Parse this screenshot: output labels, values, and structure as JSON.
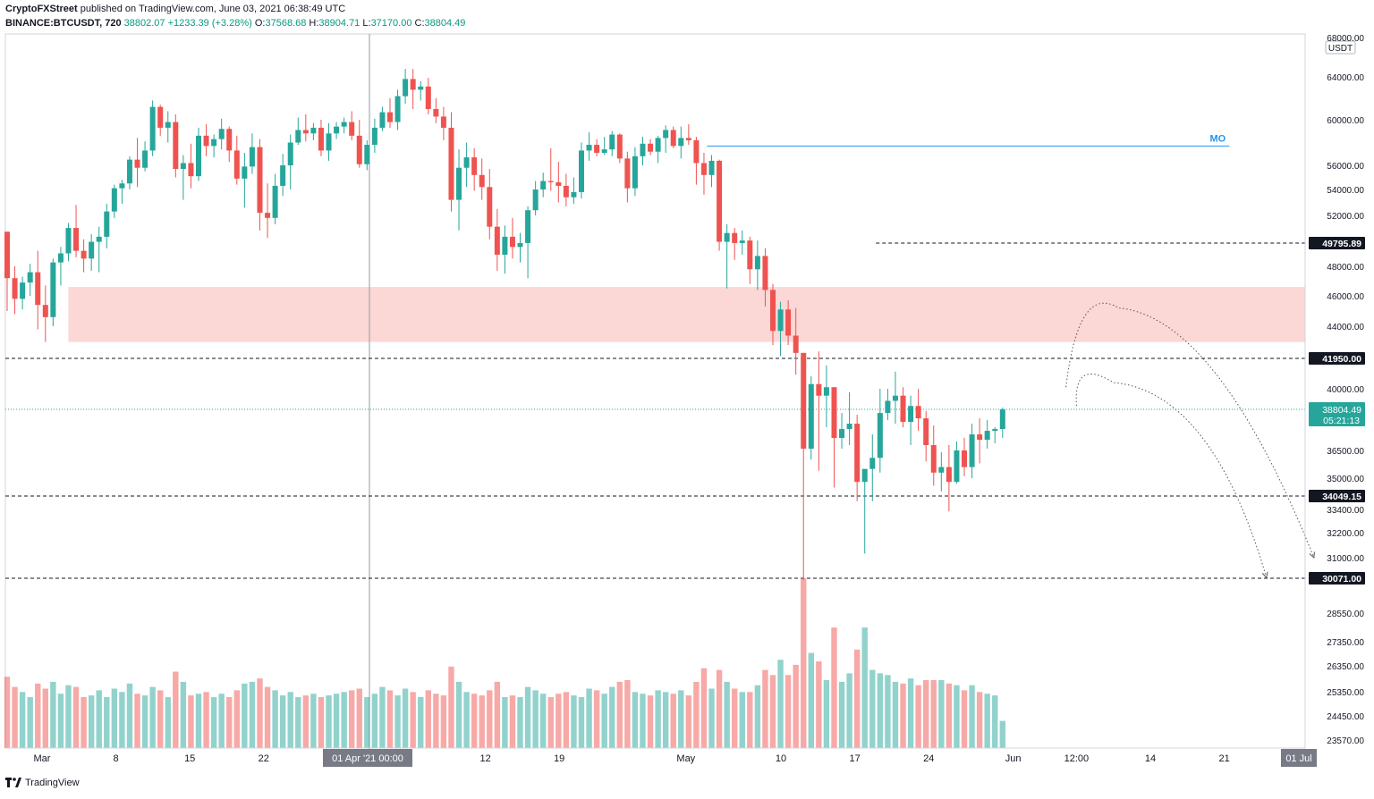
{
  "header": {
    "author": "CryptoFXStreet",
    "published_text": "published on TradingView.com, June 03, 2021 06:38:49 UTC",
    "symbol": "BINANCE:BTCUSDT, 720",
    "last": "38802.07",
    "change": "+1233.39 (+3.28%)",
    "o_label": "O:",
    "o_value": "37568.68",
    "h_label": "H:",
    "h_value": "38904.71",
    "l_label": "L:",
    "l_value": "37170.00",
    "c_label": "C:",
    "c_value": "38804.49"
  },
  "footer": {
    "brand": "TradingView"
  },
  "colors": {
    "up": "#26a69a",
    "down": "#ef5350",
    "zone": "#fbd7d5",
    "mo_line": "#2196f3"
  },
  "chart_data": {
    "type": "candlestick",
    "currency_label": "USDT",
    "price_ticks": [
      {
        "v": 68000,
        "label": "68000.00"
      },
      {
        "v": 64000,
        "label": "64000.00"
      },
      {
        "v": 60000,
        "label": "60000.00"
      },
      {
        "v": 56000,
        "label": "56000.00"
      },
      {
        "v": 54000,
        "label": "54000.00"
      },
      {
        "v": 52000,
        "label": "52000.00"
      },
      {
        "v": 48000,
        "label": "48000.00"
      },
      {
        "v": 46000,
        "label": "46000.00"
      },
      {
        "v": 44000,
        "label": "44000.00"
      },
      {
        "v": 40000,
        "label": "40000.00"
      },
      {
        "v": 36500,
        "label": "36500.00"
      },
      {
        "v": 35000,
        "label": "35000.00"
      },
      {
        "v": 33400,
        "label": "33400.00"
      },
      {
        "v": 32200,
        "label": "32200.00"
      },
      {
        "v": 31000,
        "label": "31000.00"
      },
      {
        "v": 28550,
        "label": "28550.00"
      },
      {
        "v": 27350,
        "label": "27350.00"
      },
      {
        "v": 26350,
        "label": "26350.00"
      },
      {
        "v": 25350,
        "label": "25350.00"
      },
      {
        "v": 24450,
        "label": "24450.00"
      },
      {
        "v": 23570,
        "label": "23570.00"
      }
    ],
    "x_ticks": [
      {
        "day": 1,
        "label": "Mar"
      },
      {
        "day": 8,
        "label": "8"
      },
      {
        "day": 15,
        "label": "15"
      },
      {
        "day": 22,
        "label": "22"
      },
      {
        "day": 32.5,
        "label": "01 Apr '21   00:00"
      },
      {
        "day": 43,
        "label": "12"
      },
      {
        "day": 50,
        "label": "19"
      },
      {
        "day": 62,
        "label": "May"
      },
      {
        "day": 71,
        "label": "10"
      },
      {
        "day": 78,
        "label": "17"
      },
      {
        "day": 85,
        "label": "24"
      },
      {
        "day": 93,
        "label": "Jun"
      },
      {
        "day": 99,
        "label": "12:00"
      },
      {
        "day": 106,
        "label": "14"
      },
      {
        "day": 113,
        "label": "21"
      },
      {
        "day": 120,
        "label": "01 Jul"
      }
    ],
    "levels": [
      {
        "price": 49795.89,
        "label": "49795.89",
        "from_day": 80
      },
      {
        "price": 41950.0,
        "label": "41950.00",
        "from_day": 0
      },
      {
        "price": 34049.15,
        "label": "34049.15",
        "from_day": 0
      },
      {
        "price": 30071.0,
        "label": "30071.00",
        "from_day": 0
      }
    ],
    "current_price": {
      "price": 38804.49,
      "label": "38804.49",
      "countdown": "05:21:13"
    },
    "supply_zone": {
      "top": 46600,
      "bottom": 43000,
      "from_day": 3.5
    },
    "mo_line": {
      "price": 57700,
      "from_day": 64,
      "to_day": 113.5,
      "label": "MO"
    },
    "projections": [
      {
        "start": [
          98,
          40100
        ],
        "peak": [
          103,
          45200
        ],
        "end": [
          121.5,
          31000
        ]
      },
      {
        "start": [
          99,
          39000
        ],
        "peak": [
          102.5,
          40400
        ],
        "end": [
          117,
          30100
        ]
      }
    ],
    "candles": [
      [
        50700,
        50700,
        45000,
        47200,
        4.2
      ],
      [
        47200,
        48000,
        44800,
        45800,
        3.6
      ],
      [
        45800,
        47300,
        45100,
        46900,
        3.3
      ],
      [
        46900,
        48200,
        46000,
        47600,
        3.0
      ],
      [
        47600,
        49200,
        43800,
        45400,
        3.8
      ],
      [
        45400,
        46700,
        43000,
        44600,
        3.5
      ],
      [
        44600,
        48600,
        44000,
        48300,
        3.9
      ],
      [
        48300,
        49500,
        46700,
        49000,
        3.2
      ],
      [
        49000,
        51400,
        48400,
        51000,
        3.7
      ],
      [
        51000,
        52800,
        48700,
        49200,
        3.6
      ],
      [
        49200,
        50100,
        47600,
        48600,
        3.0
      ],
      [
        48600,
        50500,
        47700,
        49900,
        3.1
      ],
      [
        49900,
        51100,
        47600,
        50300,
        3.4
      ],
      [
        50300,
        52900,
        49400,
        52300,
        3.0
      ],
      [
        52300,
        54400,
        51800,
        54100,
        3.5
      ],
      [
        54100,
        54800,
        52900,
        54500,
        3.3
      ],
      [
        54500,
        56800,
        54000,
        56500,
        3.8
      ],
      [
        56500,
        58400,
        54200,
        55800,
        3.2
      ],
      [
        55800,
        58100,
        55500,
        57300,
        3.1
      ],
      [
        57300,
        61800,
        56800,
        61200,
        3.6
      ],
      [
        61200,
        61400,
        58600,
        59300,
        3.4
      ],
      [
        59300,
        60800,
        58000,
        59800,
        3.0
      ],
      [
        59800,
        60500,
        55000,
        55700,
        4.5
      ],
      [
        55700,
        56900,
        53200,
        56200,
        3.9
      ],
      [
        56200,
        57900,
        54100,
        55100,
        3.1
      ],
      [
        55100,
        59300,
        54700,
        58600,
        3.2
      ],
      [
        58600,
        59600,
        56800,
        57700,
        3.3
      ],
      [
        57700,
        58700,
        56700,
        58300,
        3.0
      ],
      [
        58300,
        60100,
        57400,
        59200,
        3.2
      ],
      [
        59200,
        59400,
        56300,
        57300,
        3.0
      ],
      [
        57300,
        58600,
        54400,
        54900,
        3.4
      ],
      [
        54900,
        57100,
        52600,
        55900,
        3.8
      ],
      [
        55900,
        58800,
        55300,
        57600,
        3.9
      ],
      [
        57600,
        58300,
        50800,
        52200,
        4.1
      ],
      [
        52200,
        54500,
        50200,
        51800,
        3.6
      ],
      [
        51800,
        55300,
        51300,
        54300,
        3.4
      ],
      [
        54300,
        57000,
        53500,
        56000,
        3.1
      ],
      [
        56000,
        58700,
        54000,
        58000,
        3.3
      ],
      [
        58000,
        60200,
        57800,
        59100,
        3.0
      ],
      [
        59100,
        60500,
        58100,
        58800,
        3.1
      ],
      [
        58800,
        59700,
        58200,
        59300,
        3.2
      ],
      [
        59300,
        60000,
        56800,
        57300,
        3.0
      ],
      [
        57300,
        59700,
        56400,
        58800,
        3.1
      ],
      [
        58800,
        59800,
        58300,
        59400,
        3.2
      ],
      [
        59400,
        60200,
        58800,
        59800,
        3.3
      ],
      [
        59800,
        60800,
        58200,
        58600,
        3.4
      ],
      [
        58600,
        60000,
        55800,
        56100,
        3.5
      ],
      [
        56100,
        58200,
        55600,
        57800,
        3.0
      ],
      [
        57800,
        60100,
        57100,
        59300,
        3.2
      ],
      [
        59300,
        61200,
        59000,
        60700,
        3.6
      ],
      [
        60700,
        62000,
        59300,
        59800,
        3.4
      ],
      [
        59800,
        62800,
        59100,
        62200,
        3.1
      ],
      [
        62200,
        64800,
        61500,
        63800,
        3.5
      ],
      [
        63800,
        64800,
        61000,
        62800,
        3.3
      ],
      [
        62800,
        63600,
        61800,
        63100,
        3.0
      ],
      [
        63100,
        63900,
        60500,
        61000,
        3.4
      ],
      [
        61000,
        62000,
        59700,
        60300,
        3.2
      ],
      [
        60300,
        61200,
        58200,
        59300,
        3.1
      ],
      [
        59300,
        60700,
        52300,
        53200,
        4.8
      ],
      [
        53200,
        57400,
        50800,
        55800,
        3.9
      ],
      [
        55800,
        58000,
        54200,
        56700,
        3.3
      ],
      [
        56700,
        57500,
        53900,
        55200,
        3.2
      ],
      [
        55200,
        56600,
        53200,
        54200,
        3.1
      ],
      [
        54200,
        55700,
        50100,
        51100,
        3.4
      ],
      [
        51100,
        52500,
        47700,
        48900,
        3.9
      ],
      [
        48900,
        51200,
        47500,
        50300,
        3.0
      ],
      [
        50300,
        51800,
        48600,
        49500,
        3.1
      ],
      [
        49500,
        50600,
        48300,
        49800,
        3.0
      ],
      [
        49800,
        52700,
        47200,
        52400,
        3.6
      ],
      [
        52400,
        54700,
        52000,
        54000,
        3.4
      ],
      [
        54000,
        55400,
        53400,
        54700,
        3.2
      ],
      [
        54700,
        57500,
        53900,
        54600,
        3.0
      ],
      [
        54600,
        56300,
        53000,
        54300,
        3.2
      ],
      [
        54300,
        55300,
        52700,
        53400,
        3.3
      ],
      [
        53400,
        55000,
        52900,
        53800,
        3.1
      ],
      [
        53800,
        58000,
        53300,
        57300,
        3.0
      ],
      [
        57300,
        58900,
        56400,
        57800,
        3.5
      ],
      [
        57800,
        58300,
        56800,
        57100,
        3.4
      ],
      [
        57100,
        58500,
        56900,
        57400,
        3.2
      ],
      [
        57400,
        59000,
        56800,
        58700,
        3.6
      ],
      [
        58700,
        58800,
        56200,
        56600,
        3.9
      ],
      [
        56600,
        57200,
        53000,
        54100,
        4.0
      ],
      [
        54100,
        57600,
        53500,
        56800,
        3.3
      ],
      [
        56800,
        58500,
        56000,
        57900,
        3.2
      ],
      [
        57900,
        58300,
        56900,
        57200,
        3.1
      ],
      [
        57200,
        58600,
        56200,
        58400,
        3.4
      ],
      [
        58400,
        59500,
        57100,
        59100,
        3.3
      ],
      [
        59100,
        59400,
        57500,
        57700,
        3.2
      ],
      [
        57700,
        59400,
        56600,
        58400,
        3.4
      ],
      [
        58400,
        59600,
        57800,
        58200,
        3.1
      ],
      [
        58200,
        58500,
        54400,
        56200,
        3.9
      ],
      [
        56200,
        57100,
        53600,
        55200,
        4.7
      ],
      [
        55200,
        56900,
        54200,
        56400,
        3.5
      ],
      [
        56400,
        56500,
        49200,
        49900,
        4.6
      ],
      [
        49900,
        51300,
        46500,
        50600,
        3.9
      ],
      [
        50600,
        51000,
        48500,
        49800,
        3.5
      ],
      [
        49800,
        50800,
        48900,
        50000,
        3.3
      ],
      [
        50000,
        50300,
        46800,
        47800,
        3.3
      ],
      [
        47800,
        50000,
        46400,
        48800,
        3.7
      ],
      [
        48800,
        49400,
        45300,
        46400,
        4.6
      ],
      [
        46400,
        46800,
        42800,
        43700,
        4.3
      ],
      [
        43700,
        45600,
        42100,
        45100,
        5.2
      ],
      [
        45100,
        45700,
        42800,
        43400,
        4.3
      ],
      [
        43400,
        45200,
        40900,
        42300,
        4.9
      ],
      [
        42300,
        42300,
        30000,
        36600,
        10
      ],
      [
        36600,
        40800,
        36000,
        40300,
        5.6
      ],
      [
        40300,
        42400,
        35400,
        39600,
        5.1
      ],
      [
        39600,
        41500,
        37800,
        40100,
        4.0
      ],
      [
        40100,
        40100,
        34500,
        37200,
        7.1
      ],
      [
        37200,
        38600,
        36600,
        37700,
        3.9
      ],
      [
        37700,
        39800,
        36800,
        38000,
        4.4
      ],
      [
        38000,
        38500,
        33800,
        34800,
        5.8
      ],
      [
        34800,
        35400,
        31200,
        35500,
        7.1
      ],
      [
        35500,
        37400,
        33800,
        36100,
        4.6
      ],
      [
        36100,
        40000,
        35300,
        38600,
        4.4
      ],
      [
        38600,
        40000,
        38200,
        39300,
        4.3
      ],
      [
        39300,
        41100,
        38000,
        39600,
        3.9
      ],
      [
        39600,
        40100,
        37800,
        38100,
        3.8
      ],
      [
        38100,
        39600,
        36800,
        39000,
        4.1
      ],
      [
        39000,
        40000,
        37600,
        38300,
        3.7
      ],
      [
        38300,
        38700,
        35900,
        36800,
        4.0
      ],
      [
        36800,
        37900,
        34600,
        35300,
        4.0
      ],
      [
        35300,
        36400,
        34300,
        35600,
        4.0
      ],
      [
        35600,
        36800,
        33300,
        34800,
        3.8
      ],
      [
        34800,
        37000,
        34700,
        36500,
        3.7
      ],
      [
        36500,
        37200,
        35100,
        35600,
        3.4
      ],
      [
        35600,
        38000,
        35000,
        37400,
        3.7
      ],
      [
        37400,
        38300,
        35800,
        37100,
        3.3
      ],
      [
        37100,
        38200,
        36600,
        37600,
        3.2
      ],
      [
        37600,
        37800,
        36900,
        37700,
        3.1
      ],
      [
        37700,
        38900,
        37200,
        38800,
        1.6
      ]
    ]
  }
}
